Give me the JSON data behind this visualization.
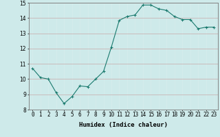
{
  "x": [
    0,
    1,
    2,
    3,
    4,
    5,
    6,
    7,
    8,
    9,
    10,
    11,
    12,
    13,
    14,
    15,
    16,
    17,
    18,
    19,
    20,
    21,
    22,
    23
  ],
  "y": [
    10.7,
    10.1,
    10.0,
    9.1,
    8.4,
    8.85,
    9.55,
    9.5,
    10.0,
    10.5,
    12.1,
    13.85,
    14.1,
    14.2,
    14.85,
    14.85,
    14.6,
    14.5,
    14.1,
    13.9,
    13.9,
    13.3,
    13.4,
    13.4
  ],
  "line_color": "#1a7a6e",
  "marker": "+",
  "marker_size": 3,
  "bg_plot": "#ceeaea",
  "bg_fig": "#ceeaea",
  "grid_color_major": "#c8a8a8",
  "grid_color_minor": "#d8ecec",
  "xlabel": "Humidex (Indice chaleur)",
  "ylim": [
    8,
    15
  ],
  "xlim": [
    -0.5,
    23.5
  ],
  "yticks": [
    8,
    9,
    10,
    11,
    12,
    13,
    14,
    15
  ],
  "xticks": [
    0,
    1,
    2,
    3,
    4,
    5,
    6,
    7,
    8,
    9,
    10,
    11,
    12,
    13,
    14,
    15,
    16,
    17,
    18,
    19,
    20,
    21,
    22,
    23
  ],
  "label_fontsize": 6.5,
  "tick_fontsize": 5.5
}
